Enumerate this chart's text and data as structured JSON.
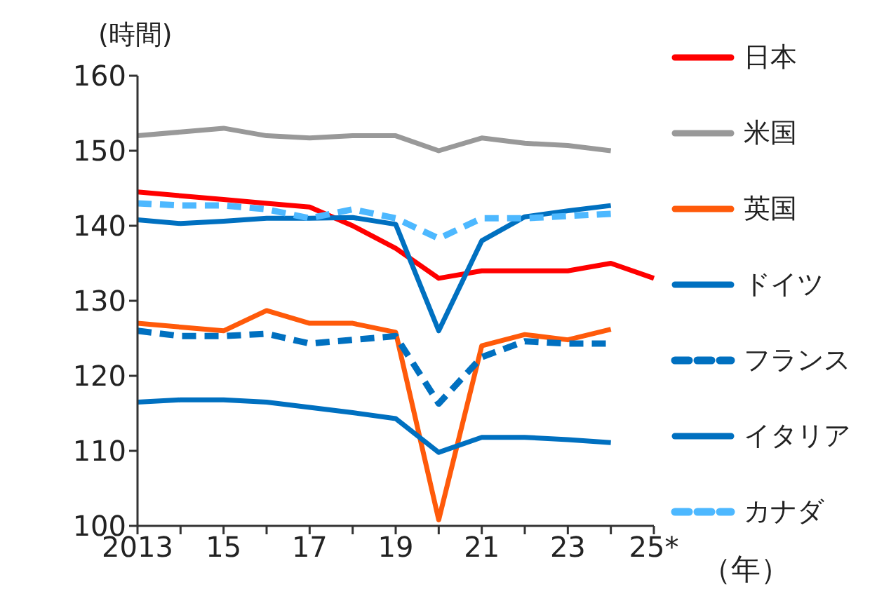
{
  "chart_data": {
    "type": "line",
    "ylabel": "(時間)",
    "xlabel": "（年）",
    "categories": [
      "2013",
      null,
      "15",
      null,
      "17",
      null,
      "19",
      null,
      "21",
      null,
      "23",
      null,
      "25*"
    ],
    "ylim": [
      100,
      160
    ],
    "yticks": [
      100,
      110,
      120,
      130,
      140,
      150,
      160
    ],
    "grid": false,
    "legend": "right",
    "marker": "none",
    "series": [
      {
        "name": "日本",
        "color": "#ff0000",
        "line_style": "solid",
        "values": [
          144.5,
          144,
          143.5,
          143,
          142.5,
          140,
          137,
          133,
          134,
          134,
          134,
          135,
          133
        ]
      },
      {
        "name": "米国",
        "color": "#999999",
        "line_style": "solid",
        "values": [
          152,
          152.5,
          153,
          152,
          151.7,
          152,
          152,
          150,
          151.7,
          151,
          150.7,
          150,
          null
        ]
      },
      {
        "name": "英国",
        "color": "#ff5a0a",
        "line_style": "solid",
        "values": [
          127,
          126.5,
          126,
          128.7,
          127,
          127,
          125.8,
          100.8,
          124,
          125.5,
          124.8,
          126.2,
          null
        ]
      },
      {
        "name": "ドイツ",
        "color": "#0070c0",
        "line_style": "solid",
        "values": [
          116.5,
          116.8,
          116.8,
          116.5,
          115.8,
          115.1,
          114.3,
          109.8,
          111.8,
          111.8,
          111.5,
          111.1,
          null
        ]
      },
      {
        "name": "フランス",
        "color": "#0070c0",
        "line_style": "dashed",
        "values": [
          126,
          125.3,
          125.3,
          125.6,
          124.3,
          124.8,
          125.3,
          116.3,
          122.5,
          124.6,
          124.3,
          124.3,
          null
        ]
      },
      {
        "name": "イタリア",
        "color": "#0070c0",
        "line_style": "solid",
        "values": [
          140.8,
          140.3,
          140.6,
          141,
          141,
          141.1,
          140.2,
          126,
          138,
          141.2,
          142,
          142.7,
          null
        ]
      },
      {
        "name": "カナダ",
        "color": "#4db8ff",
        "line_style": "dashed",
        "values": [
          143,
          142.7,
          142.7,
          142.2,
          141,
          142.2,
          141,
          138.3,
          141,
          141,
          141.3,
          141.6,
          null
        ]
      }
    ]
  }
}
